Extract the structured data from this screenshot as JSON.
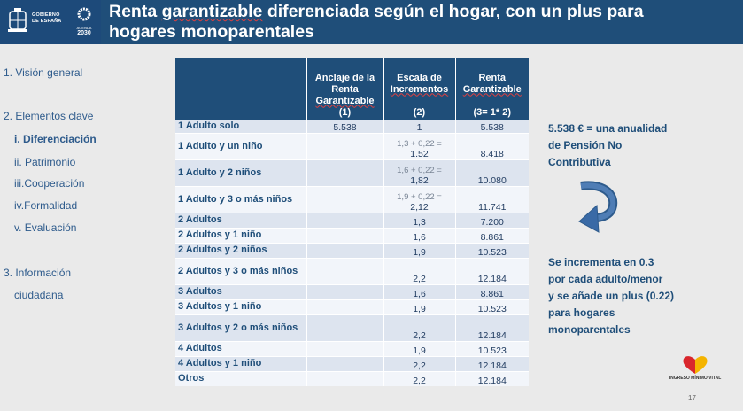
{
  "header": {
    "gov_line1": "GOBIERNO",
    "gov_line2": "DE ESPAÑA",
    "agenda_label": "AGENDA",
    "agenda_year": "2030",
    "title_pre": "Renta ",
    "title_spell": "garantizable",
    "title_post": " diferenciada según el hogar, con un plus para",
    "title_line2": "hogares monoparentales",
    "colors": {
      "brand_blue": "#1f4e79",
      "logo_blue": "#1d4a7a"
    }
  },
  "nav": {
    "items": [
      {
        "label": "1. Visión general",
        "bold": false
      },
      {
        "label": "2. Elementos clave",
        "bold": false
      },
      {
        "label": "i.  Diferenciación",
        "bold": true
      },
      {
        "label": "ii. Patrimonio",
        "bold": false
      },
      {
        "label": "iii.Cooperación",
        "bold": false
      },
      {
        "label": "iv.Formalidad",
        "bold": false
      },
      {
        "label": "v.  Evaluación",
        "bold": false
      },
      {
        "label": "3. Información",
        "bold": false
      },
      {
        "label": "ciudadana",
        "bold": false
      }
    ]
  },
  "table": {
    "headers": {
      "col1_a": "Anclaje de la Renta ",
      "col1_spell": "Garantizable",
      "col1_b": "(1)",
      "col2_a": "Escala de ",
      "col2_spell": "Incrementos",
      "col2_b": "(2)",
      "col3_a": "Renta ",
      "col3_spell": "Garantizable",
      "col3_b": "(3= 1* 2)"
    },
    "rows": [
      {
        "label": "1 Adulto solo",
        "anchor": "5.538",
        "formula": "",
        "scale": "1",
        "renta": "5.538"
      },
      {
        "label": "1 Adulto y un niño",
        "anchor": "",
        "formula": "1,3 + 0,22 =",
        "scale": "1.52",
        "renta": "8.418"
      },
      {
        "label": "1 Adulto y 2 niños",
        "anchor": "",
        "formula": "1,6 + 0,22 =",
        "scale": "1,82",
        "renta": "10.080"
      },
      {
        "label": "1 Adulto y 3 o más niños",
        "anchor": "",
        "formula": "1,9 + 0,22 =",
        "scale": "2,12",
        "renta": "11.741"
      },
      {
        "label": "2 Adultos",
        "anchor": "",
        "formula": "",
        "scale": "1,3",
        "renta": "7.200"
      },
      {
        "label": "2 Adultos y 1 niño",
        "anchor": "",
        "formula": "",
        "scale": "1,6",
        "renta": "8.861"
      },
      {
        "label": "2 Adultos y 2 niños",
        "anchor": "",
        "formula": "",
        "scale": "1,9",
        "renta": "10.523"
      },
      {
        "label": "2 Adultos y 3 o más niños",
        "anchor": "",
        "formula": "",
        "scale": "2,2",
        "renta": "12.184"
      },
      {
        "label": "3 Adultos",
        "anchor": "",
        "formula": "",
        "scale": "1,6",
        "renta": "8.861"
      },
      {
        "label": "3 Adultos y 1 niño",
        "anchor": "",
        "formula": "",
        "scale": "1,9",
        "renta": "10.523"
      },
      {
        "label": "3 Adultos y 2  o más niños",
        "anchor": "",
        "formula": "",
        "scale": "2,2",
        "renta": "12.184"
      },
      {
        "label": "4 Adultos",
        "anchor": "",
        "formula": "",
        "scale": "1,9",
        "renta": "10.523"
      },
      {
        "label": "4 Adultos y 1 niño",
        "anchor": "",
        "formula": "",
        "scale": "2,2",
        "renta": "12.184"
      },
      {
        "label": "Otros",
        "anchor": "",
        "formula": "",
        "scale": "2,2",
        "renta": "12.184"
      }
    ]
  },
  "notes": {
    "top": [
      "5.538 € = una anualidad",
      "de Pensión No",
      "Contributiva"
    ],
    "bottom": [
      "Se incrementa en 0.3",
      "por cada adulto/menor",
      "y se añade un plus (0.22)",
      "para hogares",
      "monoparentales"
    ]
  },
  "footer": {
    "logo_text": "INGRESO MÍNIMO VITAL",
    "page_number": "17"
  }
}
